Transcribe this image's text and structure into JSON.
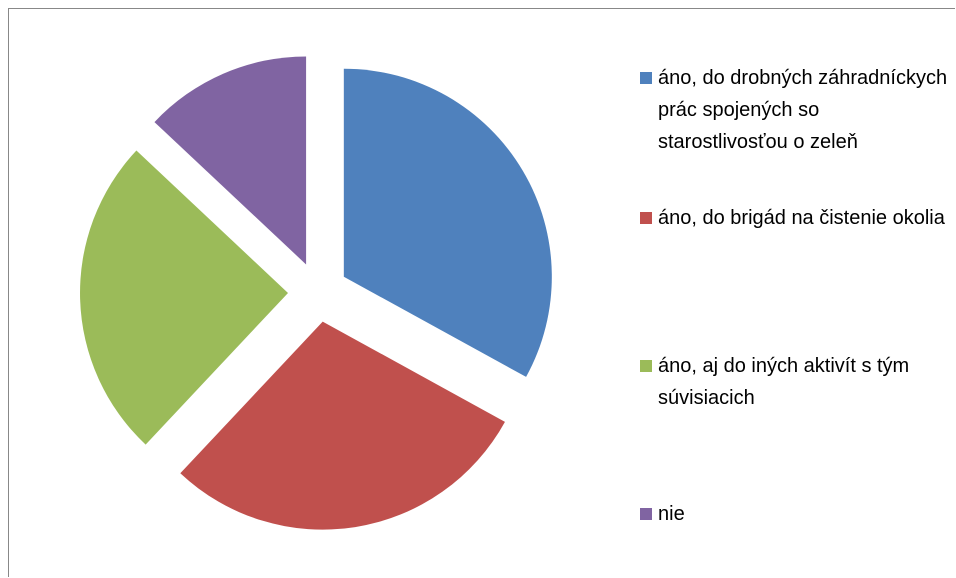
{
  "chart_data": {
    "type": "pie",
    "categories": [
      "áno, do drobných záhradníckych prác spojených so starostlivosťou o zeleň",
      "áno, do brigád na čistenie okolia",
      "áno, aj do iných aktivít s tým súvisiacich",
      "nie"
    ],
    "values": [
      33,
      29,
      25,
      13
    ],
    "colors": [
      "#4f81bd",
      "#c0504d",
      "#9bbb59",
      "#8064a2"
    ],
    "exploded": true,
    "legend": "right"
  }
}
